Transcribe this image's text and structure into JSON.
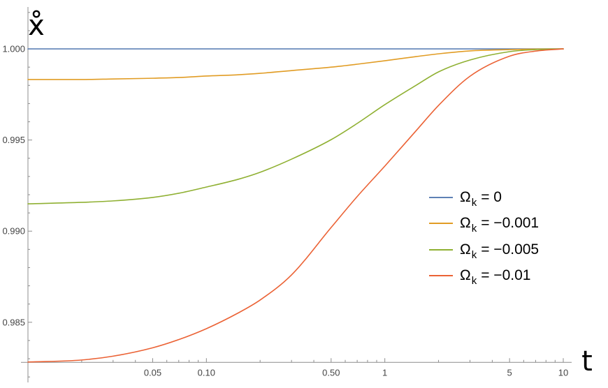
{
  "chart_data": {
    "type": "line",
    "xlabel": "t",
    "ylabel": "x̊",
    "x_scale": "log",
    "xlim": [
      0.01,
      10
    ],
    "ylim": [
      0.9817,
      1.0023
    ],
    "axes_origin": [
      0.01,
      0.9828
    ],
    "grid": false,
    "legend_position": "right",
    "xticks": [
      {
        "value": 0.05,
        "label": "0.05"
      },
      {
        "value": 0.1,
        "label": "0.10"
      },
      {
        "value": 0.5,
        "label": "0.50"
      },
      {
        "value": 1,
        "label": "1"
      },
      {
        "value": 5,
        "label": "5"
      },
      {
        "value": 10,
        "label": "10"
      }
    ],
    "yticks": [
      {
        "value": 1.0,
        "label": "1.000"
      },
      {
        "value": 0.995,
        "label": "0.995"
      },
      {
        "value": 0.99,
        "label": "0.990"
      },
      {
        "value": 0.985,
        "label": "0.985"
      }
    ],
    "x": [
      0.01,
      0.02,
      0.03,
      0.05,
      0.07,
      0.1,
      0.15,
      0.2,
      0.3,
      0.5,
      0.7,
      1,
      1.5,
      2,
      3,
      5,
      7,
      10
    ],
    "series": [
      {
        "legend_symbol": "Ω",
        "legend_subscript": "k",
        "legend_text": "= 0",
        "color": "#5E81B5",
        "values": [
          1.0,
          1.0,
          1.0,
          1.0,
          1.0,
          1.0,
          1.0,
          1.0,
          1.0,
          1.0,
          1.0,
          1.0,
          1.0,
          1.0,
          1.0,
          1.0,
          1.0,
          1.0
        ]
      },
      {
        "legend_symbol": "Ω",
        "legend_subscript": "k",
        "legend_text": "= −0.001",
        "color": "#E19C24",
        "values": [
          0.99832,
          0.99832,
          0.99835,
          0.99839,
          0.99843,
          0.99851,
          0.99858,
          0.99866,
          0.99881,
          0.999,
          0.99916,
          0.99935,
          0.99958,
          0.99973,
          0.99989,
          0.99996,
          0.99999,
          1.0
        ]
      },
      {
        "legend_symbol": "Ω",
        "legend_subscript": "k",
        "legend_text": "= −0.005",
        "color": "#8FB032",
        "values": [
          0.9915,
          0.99158,
          0.99166,
          0.99185,
          0.99208,
          0.99242,
          0.99284,
          0.99323,
          0.99395,
          0.99502,
          0.99591,
          0.99694,
          0.99801,
          0.99874,
          0.99939,
          0.99985,
          0.99996,
          1.0
        ]
      },
      {
        "legend_symbol": "Ω",
        "legend_subscript": "k",
        "legend_text": "= −0.01",
        "color": "#EB6235",
        "values": [
          0.98282,
          0.98293,
          0.98314,
          0.9836,
          0.98405,
          0.98465,
          0.9855,
          0.98622,
          0.9876,
          0.9902,
          0.9919,
          0.99357,
          0.99552,
          0.9969,
          0.9985,
          0.9996,
          0.99988,
          1.0
        ]
      }
    ]
  }
}
